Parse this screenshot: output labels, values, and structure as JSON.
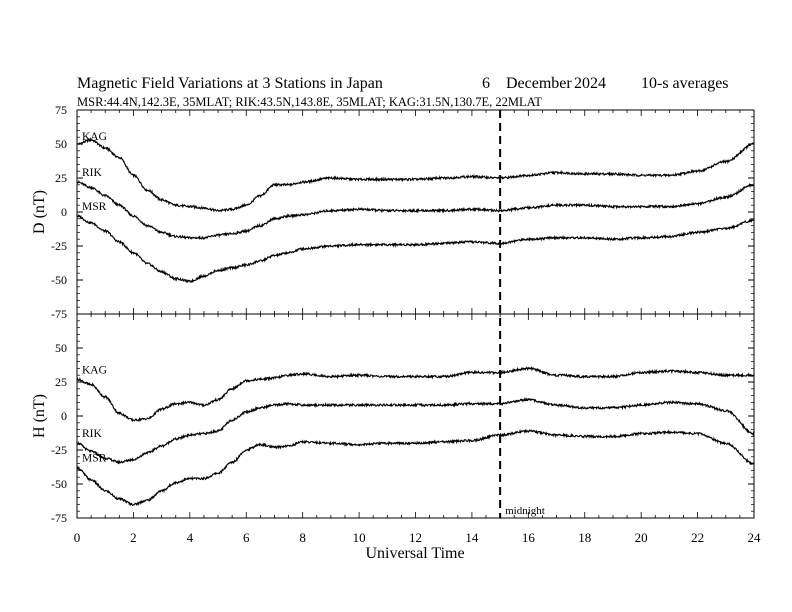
{
  "header": {
    "title": "Magnetic Field Variations at 3 Stations in Japan",
    "day": "6",
    "month": "December",
    "year": "2024",
    "averaging": "10-s averages",
    "stations_line": "MSR:44.4N,142.3E, 35MLAT;  RIK:43.5N,143.8E, 35MLAT;  KAG:31.5N,130.7E, 22MLAT"
  },
  "chart_data": [
    {
      "type": "line",
      "panel": "top",
      "ylabel": "D (nT)",
      "ylim": [
        -75,
        75
      ],
      "yticks": [
        75,
        50,
        25,
        0,
        -25,
        -50,
        -75
      ],
      "xlim": [
        0,
        24
      ],
      "series": [
        {
          "name": "KAG",
          "x": [
            0,
            0.5,
            1,
            1.5,
            2,
            2.5,
            3,
            3.5,
            4,
            4.5,
            5,
            5.5,
            6,
            6.5,
            7,
            7.5,
            8,
            9,
            10,
            11,
            12,
            13,
            14,
            15,
            16,
            17,
            18,
            19,
            20,
            21,
            22,
            23,
            24
          ],
          "values": [
            50,
            53,
            47,
            40,
            27,
            16,
            9,
            5,
            4,
            3,
            1,
            2,
            5,
            12,
            20,
            20,
            22,
            25,
            24,
            24,
            24,
            25,
            26,
            25,
            27,
            29,
            28,
            28,
            27,
            27,
            30,
            37,
            50
          ]
        },
        {
          "name": "RIK",
          "x": [
            0,
            0.5,
            1,
            1.5,
            2,
            2.5,
            3,
            3.5,
            4,
            4.5,
            5,
            5.5,
            6,
            6.5,
            7,
            7.5,
            8,
            9,
            10,
            11,
            12,
            13,
            14,
            15,
            16,
            17,
            18,
            19,
            20,
            21,
            22,
            23,
            24
          ],
          "values": [
            22,
            18,
            12,
            5,
            -3,
            -10,
            -15,
            -18,
            -19,
            -19,
            -17,
            -16,
            -14,
            -10,
            -5,
            -3,
            -2,
            1,
            2,
            1,
            1,
            1,
            2,
            1,
            3,
            5,
            5,
            4,
            4,
            4,
            6,
            11,
            20
          ]
        },
        {
          "name": "MSR",
          "x": [
            0,
            0.5,
            1,
            1.5,
            2,
            2.5,
            3,
            3.5,
            4,
            4.5,
            5,
            5.5,
            6,
            6.5,
            7,
            7.5,
            8,
            9,
            10,
            11,
            12,
            13,
            14,
            15,
            16,
            17,
            18,
            19,
            20,
            21,
            22,
            23,
            24
          ],
          "values": [
            -3,
            -8,
            -14,
            -22,
            -30,
            -38,
            -44,
            -49,
            -51,
            -47,
            -43,
            -41,
            -39,
            -36,
            -32,
            -30,
            -27,
            -25,
            -24,
            -24,
            -24,
            -23,
            -22,
            -23,
            -20,
            -19,
            -19,
            -20,
            -19,
            -18,
            -15,
            -12,
            -6
          ]
        }
      ]
    },
    {
      "type": "line",
      "panel": "bottom",
      "ylabel": "H (nT)",
      "ylim": [
        -75,
        75
      ],
      "yticks": [
        50,
        25,
        0,
        -25,
        -50,
        -75
      ],
      "xlabel": "Universal Time",
      "xlim": [
        0,
        24
      ],
      "xticks": [
        0,
        2,
        4,
        6,
        8,
        10,
        12,
        14,
        16,
        18,
        20,
        22,
        24
      ],
      "series": [
        {
          "name": "KAG",
          "x": [
            0,
            0.5,
            1,
            1.5,
            2,
            2.5,
            3,
            3.5,
            4,
            4.5,
            5,
            5.5,
            6,
            6.5,
            7,
            7.5,
            8,
            9,
            10,
            11,
            12,
            13,
            14,
            15,
            16,
            17,
            18,
            19,
            20,
            21,
            22,
            23,
            24
          ],
          "values": [
            27,
            23,
            14,
            2,
            -3,
            -2,
            5,
            9,
            10,
            8,
            12,
            20,
            26,
            27,
            28,
            30,
            31,
            29,
            30,
            29,
            29,
            29,
            32,
            32,
            35,
            30,
            29,
            29,
            32,
            33,
            32,
            30,
            30
          ]
        },
        {
          "name": "RIK",
          "x": [
            0,
            0.5,
            1,
            1.5,
            2,
            2.5,
            3,
            3.5,
            4,
            4.5,
            5,
            5.5,
            6,
            6.5,
            7,
            7.5,
            8,
            9,
            10,
            11,
            12,
            13,
            14,
            15,
            16,
            17,
            18,
            19,
            20,
            21,
            22,
            23,
            24
          ],
          "values": [
            -20,
            -26,
            -31,
            -34,
            -32,
            -27,
            -22,
            -17,
            -14,
            -13,
            -11,
            -3,
            3,
            6,
            8,
            9,
            8,
            8,
            8,
            8,
            8,
            8,
            9,
            9,
            12,
            8,
            6,
            6,
            8,
            10,
            9,
            4,
            -13
          ]
        },
        {
          "name": "MSR",
          "x": [
            0,
            0.5,
            1,
            1.5,
            2,
            2.5,
            3,
            3.5,
            4,
            4.5,
            5,
            5.5,
            6,
            6.5,
            7,
            7.5,
            8,
            9,
            10,
            11,
            12,
            13,
            14,
            15,
            16,
            17,
            18,
            19,
            20,
            21,
            22,
            23,
            24
          ],
          "values": [
            -38,
            -47,
            -55,
            -61,
            -65,
            -62,
            -55,
            -49,
            -46,
            -46,
            -42,
            -34,
            -25,
            -21,
            -23,
            -22,
            -19,
            -20,
            -21,
            -20,
            -20,
            -19,
            -18,
            -14,
            -11,
            -14,
            -15,
            -15,
            -13,
            -12,
            -13,
            -20,
            -35
          ]
        }
      ]
    }
  ],
  "annotation": {
    "label": "midnight",
    "x": 15
  },
  "colors": {
    "line": "#000000",
    "background": "#ffffff"
  }
}
